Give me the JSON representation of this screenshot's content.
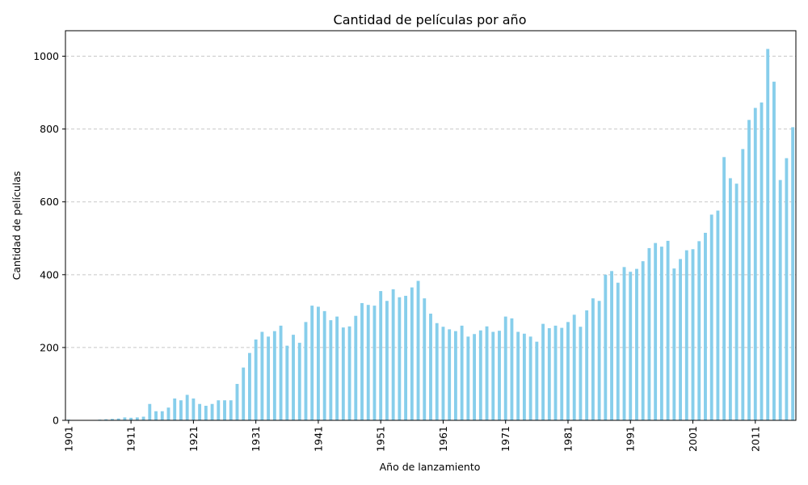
{
  "chart_data": {
    "type": "bar",
    "title": "Cantidad de películas por año",
    "xlabel": "Año de lanzamiento",
    "ylabel": "Cantidad de películas",
    "ylim": [
      0,
      1070
    ],
    "yticks": [
      0,
      200,
      400,
      600,
      800,
      1000
    ],
    "xticks": [
      "1901",
      "1911",
      "1921",
      "1931",
      "1941",
      "1951",
      "1961",
      "1971",
      "1981",
      "1991",
      "2001",
      "2011"
    ],
    "grid": "y-dashed",
    "bar_color": "#87CEEB",
    "categories": [
      1901,
      1902,
      1903,
      1904,
      1905,
      1906,
      1907,
      1908,
      1909,
      1910,
      1911,
      1912,
      1913,
      1914,
      1915,
      1916,
      1917,
      1918,
      1919,
      1920,
      1921,
      1922,
      1923,
      1924,
      1925,
      1926,
      1927,
      1928,
      1929,
      1930,
      1931,
      1932,
      1933,
      1934,
      1935,
      1936,
      1937,
      1938,
      1939,
      1940,
      1941,
      1942,
      1943,
      1944,
      1945,
      1946,
      1947,
      1948,
      1949,
      1950,
      1951,
      1952,
      1953,
      1954,
      1955,
      1956,
      1957,
      1958,
      1959,
      1960,
      1961,
      1962,
      1963,
      1964,
      1965,
      1966,
      1967,
      1968,
      1969,
      1970,
      1971,
      1972,
      1973,
      1974,
      1975,
      1976,
      1977,
      1978,
      1979,
      1980,
      1981,
      1982,
      1983,
      1984,
      1985,
      1986,
      1987,
      1988,
      1989,
      1990,
      1991,
      1992,
      1993,
      1994,
      1995,
      1996,
      1997,
      1998,
      1999,
      2000,
      2001,
      2002,
      2003,
      2004,
      2005,
      2006,
      2007,
      2008,
      2009,
      2010,
      2011,
      2012,
      2013,
      2014,
      2015,
      2016,
      2017
    ],
    "values": [
      2,
      1,
      0,
      1,
      1,
      2,
      3,
      4,
      5,
      8,
      7,
      8,
      10,
      45,
      25,
      25,
      35,
      60,
      55,
      70,
      60,
      45,
      40,
      45,
      55,
      55,
      55,
      100,
      145,
      185,
      222,
      243,
      230,
      245,
      260,
      205,
      235,
      213,
      270,
      315,
      312,
      300,
      275,
      285,
      255,
      258,
      287,
      322,
      317,
      315,
      355,
      328,
      360,
      338,
      342,
      365,
      383,
      335,
      293,
      267,
      257,
      250,
      245,
      260,
      230,
      237,
      247,
      258,
      243,
      246,
      285,
      280,
      243,
      238,
      230,
      216,
      265,
      253,
      260,
      254,
      270,
      290,
      257,
      302,
      335,
      328,
      400,
      410,
      378,
      421,
      408,
      416,
      437,
      473,
      487,
      477,
      493,
      417,
      443,
      467,
      470,
      492,
      515,
      565,
      576,
      723,
      665,
      650,
      745,
      825,
      858,
      873,
      1020,
      930,
      660,
      720,
      805
    ]
  }
}
